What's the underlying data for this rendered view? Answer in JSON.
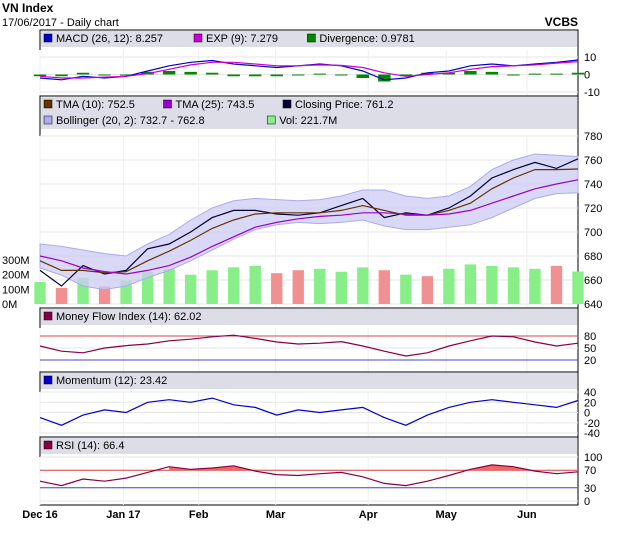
{
  "header": {
    "title": "VN Index",
    "subtitle": "17/06/2017 - Daily chart",
    "source": "VCBS"
  },
  "chart_data": [
    {
      "type": "line",
      "panel": "macd",
      "legend": [
        {
          "label": "MACD (26, 12): 8.257",
          "color": "#0000cc"
        },
        {
          "label": "EXP (9): 7.279",
          "color": "#cc00cc"
        },
        {
          "label": "Divergence: 0.9781",
          "color": "#008800"
        }
      ],
      "ylim": [
        -10,
        14
      ],
      "yticks": [
        "10",
        "0",
        "-10"
      ],
      "x": [
        0,
        0.04,
        0.08,
        0.12,
        0.16,
        0.2,
        0.24,
        0.28,
        0.32,
        0.36,
        0.4,
        0.44,
        0.48,
        0.52,
        0.56,
        0.6,
        0.64,
        0.68,
        0.72,
        0.76,
        0.8,
        0.84,
        0.88,
        0.92,
        0.96,
        1
      ],
      "series": [
        {
          "name": "MACD",
          "color": "#0000cc",
          "values": [
            -2,
            -3,
            -1,
            -2,
            -1,
            2,
            5,
            7,
            8,
            6,
            5,
            4,
            5,
            6,
            5,
            2,
            -3,
            -2,
            1,
            2,
            5,
            6,
            5,
            6,
            7,
            8.3
          ]
        },
        {
          "name": "EXP",
          "color": "#cc00cc",
          "values": [
            -1,
            -2,
            -2,
            -1.5,
            -1,
            0.5,
            3,
            5.5,
            7,
            7,
            6,
            5,
            5,
            5.5,
            5.2,
            4,
            1,
            -1,
            0,
            1,
            3,
            4.5,
            5,
            5.5,
            6.5,
            7.3
          ]
        },
        {
          "name": "Divergence",
          "color": "#008800",
          "values": [
            -1,
            -1,
            1,
            -0.5,
            0,
            1.5,
            2,
            1.5,
            1,
            -1,
            -1,
            -1,
            0,
            0.5,
            -0.2,
            -2,
            -4,
            -1,
            1,
            1,
            2,
            1.5,
            0,
            0.5,
            0.5,
            1
          ]
        }
      ]
    },
    {
      "type": "line",
      "panel": "price",
      "legend": [
        {
          "label": "TMA (10): 752.5",
          "color": "#663300"
        },
        {
          "label": "TMA (25): 743.5",
          "color": "#9900cc"
        },
        {
          "label": "Closing Price: 761.2",
          "color": "#000033"
        },
        {
          "label": "Bollinger (20, 2): 732.7 - 762.8",
          "color": "#aaaaee"
        },
        {
          "label": "Vol: 221.7M",
          "color": "#88ee88"
        }
      ],
      "ylim": [
        640,
        780
      ],
      "yticks": [
        "780",
        "760",
        "740",
        "720",
        "700",
        "680",
        "660",
        "640"
      ],
      "volume_ticks": [
        "300M",
        "200M",
        "100M",
        "0M"
      ],
      "x": [
        0,
        0.04,
        0.08,
        0.12,
        0.16,
        0.2,
        0.24,
        0.28,
        0.32,
        0.36,
        0.4,
        0.44,
        0.48,
        0.52,
        0.56,
        0.6,
        0.64,
        0.68,
        0.72,
        0.76,
        0.8,
        0.84,
        0.88,
        0.92,
        0.96,
        1
      ],
      "series": [
        {
          "name": "Closing Price",
          "color": "#000033",
          "values": [
            668,
            655,
            672,
            665,
            668,
            686,
            690,
            700,
            712,
            718,
            718,
            715,
            714,
            716,
            722,
            728,
            712,
            716,
            714,
            720,
            730,
            745,
            752,
            758,
            753,
            761
          ]
        },
        {
          "name": "TMA (10)",
          "color": "#663300",
          "values": [
            676,
            668,
            668,
            666,
            667,
            676,
            684,
            693,
            703,
            710,
            715,
            716,
            716,
            716,
            718,
            722,
            718,
            714,
            714,
            718,
            724,
            736,
            745,
            752,
            752,
            752.5
          ]
        },
        {
          "name": "TMA (25)",
          "color": "#9900cc",
          "values": [
            680,
            676,
            670,
            667,
            665,
            668,
            672,
            679,
            688,
            696,
            704,
            708,
            711,
            713,
            714,
            716,
            716,
            715,
            714,
            715,
            718,
            724,
            730,
            736,
            740,
            743.5
          ]
        },
        {
          "name": "Bollinger Upper",
          "color": "#aaaaee",
          "values": [
            690,
            688,
            685,
            682,
            680,
            690,
            698,
            710,
            720,
            726,
            728,
            727,
            726,
            727,
            730,
            735,
            735,
            730,
            728,
            730,
            738,
            752,
            760,
            765,
            764,
            762.8
          ]
        },
        {
          "name": "Bollinger Lower",
          "color": "#aaaaee",
          "values": [
            670,
            664,
            655,
            652,
            655,
            662,
            668,
            676,
            685,
            694,
            702,
            706,
            708,
            707,
            708,
            710,
            705,
            702,
            702,
            704,
            706,
            712,
            720,
            728,
            732,
            732.7
          ]
        }
      ],
      "volume": [
        150,
        110,
        180,
        120,
        160,
        220,
        240,
        200,
        230,
        250,
        260,
        210,
        230,
        240,
        220,
        250,
        230,
        200,
        190,
        240,
        270,
        260,
        250,
        240,
        260,
        221.7
      ]
    },
    {
      "type": "line",
      "panel": "mfi",
      "legend": [
        {
          "label": "Money Flow Index (14): 62.02",
          "color": "#880044"
        }
      ],
      "ylim": [
        0,
        100
      ],
      "yticks": [
        "80",
        "50",
        "20"
      ],
      "x": [
        0,
        0.04,
        0.08,
        0.12,
        0.16,
        0.2,
        0.24,
        0.28,
        0.32,
        0.36,
        0.4,
        0.44,
        0.48,
        0.52,
        0.56,
        0.6,
        0.64,
        0.68,
        0.72,
        0.76,
        0.8,
        0.84,
        0.88,
        0.92,
        0.96,
        1
      ],
      "series": [
        {
          "name": "MFI",
          "color": "#880044",
          "values": [
            55,
            42,
            38,
            50,
            56,
            60,
            68,
            72,
            78,
            82,
            74,
            65,
            60,
            62,
            66,
            55,
            42,
            30,
            38,
            55,
            68,
            80,
            78,
            65,
            55,
            62
          ]
        }
      ]
    },
    {
      "type": "line",
      "panel": "momentum",
      "legend": [
        {
          "label": "Momentum (12): 23.42",
          "color": "#0000cc"
        }
      ],
      "ylim": [
        -40,
        40
      ],
      "yticks": [
        "40",
        "20",
        "0",
        "-20",
        "-40"
      ],
      "x": [
        0,
        0.04,
        0.08,
        0.12,
        0.16,
        0.2,
        0.24,
        0.28,
        0.32,
        0.36,
        0.4,
        0.44,
        0.48,
        0.52,
        0.56,
        0.6,
        0.64,
        0.68,
        0.72,
        0.76,
        0.8,
        0.84,
        0.88,
        0.92,
        0.96,
        1
      ],
      "series": [
        {
          "name": "Momentum",
          "color": "#0000cc",
          "values": [
            -10,
            -25,
            -5,
            5,
            0,
            20,
            25,
            20,
            28,
            15,
            10,
            -5,
            5,
            0,
            5,
            10,
            -10,
            -25,
            -5,
            10,
            20,
            25,
            20,
            15,
            10,
            23.4
          ]
        }
      ]
    },
    {
      "type": "area",
      "panel": "rsi",
      "legend": [
        {
          "label": "RSI (14): 66.4",
          "color": "#880044"
        }
      ],
      "ylim": [
        0,
        100
      ],
      "yticks": [
        "100",
        "70",
        "30",
        "0"
      ],
      "x": [
        0,
        0.04,
        0.08,
        0.12,
        0.16,
        0.2,
        0.24,
        0.28,
        0.32,
        0.36,
        0.4,
        0.44,
        0.48,
        0.52,
        0.56,
        0.6,
        0.64,
        0.68,
        0.72,
        0.76,
        0.8,
        0.84,
        0.88,
        0.92,
        0.96,
        1
      ],
      "series": [
        {
          "name": "RSI",
          "color": "#880044",
          "values": [
            45,
            35,
            50,
            45,
            52,
            65,
            78,
            72,
            75,
            80,
            68,
            60,
            58,
            62,
            65,
            55,
            40,
            35,
            45,
            58,
            72,
            82,
            78,
            68,
            62,
            66.4
          ]
        }
      ]
    }
  ],
  "xaxis": {
    "ticks": [
      {
        "label": "Dec 16",
        "pos": 0.0
      },
      {
        "label": "Jan 17",
        "pos": 0.155
      },
      {
        "label": "Feb",
        "pos": 0.295
      },
      {
        "label": "Mar",
        "pos": 0.438
      },
      {
        "label": "Apr",
        "pos": 0.61
      },
      {
        "label": "May",
        "pos": 0.755
      },
      {
        "label": "Jun",
        "pos": 0.905
      }
    ]
  }
}
